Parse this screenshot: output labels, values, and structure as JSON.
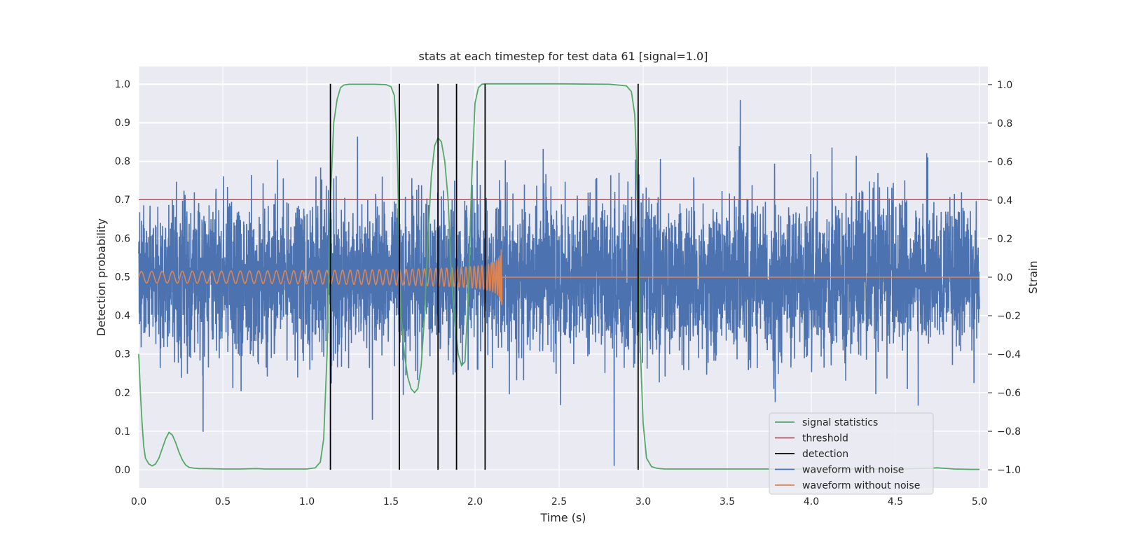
{
  "chart_data": {
    "type": "line",
    "title": "stats at each timestep for test data 61 [signal=1.0]",
    "xlabel": "Time (s)",
    "ylabel": "Detection probability",
    "y2label": "Strain",
    "xlim": [
      0,
      5.05
    ],
    "ylim": [
      -0.047,
      1.045
    ],
    "y2lim": [
      -1.094,
      1.094
    ],
    "xticks": [
      "0.0",
      "0.5",
      "1.0",
      "1.5",
      "2.0",
      "2.5",
      "3.0",
      "3.5",
      "4.0",
      "4.5",
      "5.0"
    ],
    "xtick_values": [
      0,
      0.5,
      1,
      1.5,
      2,
      2.5,
      3,
      3.5,
      4,
      4.5,
      5
    ],
    "yticks": [
      "0.0",
      "0.1",
      "0.2",
      "0.3",
      "0.4",
      "0.5",
      "0.6",
      "0.7",
      "0.8",
      "0.9",
      "1.0"
    ],
    "ytick_values": [
      0,
      0.1,
      0.2,
      0.3,
      0.4,
      0.5,
      0.6,
      0.7,
      0.8,
      0.9,
      1.0
    ],
    "y2ticks": [
      "−1.0",
      "−0.8",
      "−0.6",
      "−0.4",
      "−0.2",
      "0.0",
      "0.2",
      "0.4",
      "0.6",
      "0.8",
      "1.0"
    ],
    "y2tick_values": [
      -1,
      -0.8,
      -0.6,
      -0.4,
      -0.2,
      0,
      0.2,
      0.4,
      0.6,
      0.8,
      1.0
    ],
    "grid": true,
    "legend_position": "lower-right",
    "colors": {
      "plot_bg": "#eaeaf2",
      "grid": "#ffffff",
      "signal_statistics": "#55a868",
      "threshold": "#c44e52",
      "detection": "#000000",
      "waveform_noise": "#4c72b0",
      "waveform_clean": "#dd8452"
    },
    "series": [
      {
        "name": "signal statistics",
        "axis": "left",
        "x": [
          0.0,
          0.01,
          0.02,
          0.03,
          0.04,
          0.06,
          0.08,
          0.1,
          0.12,
          0.14,
          0.16,
          0.18,
          0.2,
          0.22,
          0.24,
          0.26,
          0.28,
          0.3,
          0.33,
          0.36,
          0.4,
          0.5,
          0.6,
          0.7,
          0.75,
          0.8,
          0.9,
          1.0,
          1.05,
          1.08,
          1.1,
          1.12,
          1.14,
          1.16,
          1.18,
          1.2,
          1.22,
          1.25,
          1.3,
          1.4,
          1.47,
          1.5,
          1.52,
          1.53,
          1.54,
          1.55,
          1.56,
          1.58,
          1.6,
          1.62,
          1.64,
          1.66,
          1.68,
          1.7,
          1.72,
          1.74,
          1.76,
          1.78,
          1.8,
          1.82,
          1.84,
          1.86,
          1.88,
          1.9,
          1.92,
          1.94,
          1.96,
          1.98,
          2.0,
          2.02,
          2.04,
          2.06,
          2.08,
          2.1,
          2.13,
          2.2,
          2.5,
          2.8,
          2.9,
          2.93,
          2.95,
          2.96,
          2.97,
          2.98,
          3.0,
          3.02,
          3.05,
          3.08,
          3.1,
          3.13,
          3.2,
          3.5,
          3.8,
          4.0,
          4.2,
          4.5,
          4.7,
          4.75,
          4.78,
          4.85,
          4.95,
          5.0
        ],
        "values": [
          0.3,
          0.2,
          0.12,
          0.06,
          0.03,
          0.015,
          0.01,
          0.015,
          0.03,
          0.055,
          0.08,
          0.097,
          0.09,
          0.07,
          0.045,
          0.025,
          0.012,
          0.006,
          0.004,
          0.003,
          0.003,
          0.002,
          0.002,
          0.003,
          0.002,
          0.002,
          0.002,
          0.002,
          0.005,
          0.02,
          0.08,
          0.3,
          0.7,
          0.9,
          0.96,
          0.99,
          0.997,
          0.999,
          0.999,
          0.999,
          0.998,
          0.993,
          0.97,
          0.9,
          0.78,
          0.55,
          0.4,
          0.3,
          0.24,
          0.21,
          0.2,
          0.21,
          0.27,
          0.4,
          0.6,
          0.76,
          0.84,
          0.86,
          0.85,
          0.8,
          0.7,
          0.5,
          0.38,
          0.3,
          0.27,
          0.28,
          0.45,
          0.75,
          0.95,
          0.99,
          0.999,
          1.0,
          1.0,
          1.0,
          1.0,
          1.0,
          1.0,
          0.999,
          0.995,
          0.98,
          0.92,
          0.8,
          0.6,
          0.35,
          0.12,
          0.03,
          0.008,
          0.004,
          0.003,
          0.002,
          0.002,
          0.002,
          0.002,
          0.002,
          0.002,
          0.002,
          0.004,
          0.005,
          0.004,
          0.002,
          0.001,
          0.001
        ]
      },
      {
        "name": "threshold",
        "axis": "left",
        "x": [
          0,
          5.05
        ],
        "values": [
          0.7,
          0.7
        ]
      },
      {
        "name": "detection",
        "axis": "left",
        "x": [
          1.14,
          1.55,
          1.78,
          1.89,
          2.06,
          2.97
        ],
        "values": [
          [
            0,
            1
          ],
          [
            0,
            1
          ],
          [
            0,
            1
          ],
          [
            0,
            1
          ],
          [
            0,
            1
          ],
          [
            0,
            1
          ]
        ]
      },
      {
        "name": "waveform with noise",
        "axis": "right",
        "x_range": [
          0,
          5.0
        ],
        "amplitude_std": 0.2,
        "peak_max": 0.92,
        "peak_min": -0.98
      },
      {
        "name": "waveform without noise",
        "axis": "right",
        "x_range": [
          0,
          2.16
        ],
        "chirp_start_freq": 16,
        "chirp_merge_time": 2.16,
        "amplitude_start": 0.03,
        "amplitude_peak": 0.22,
        "after_merge_value": 0.0
      }
    ]
  }
}
